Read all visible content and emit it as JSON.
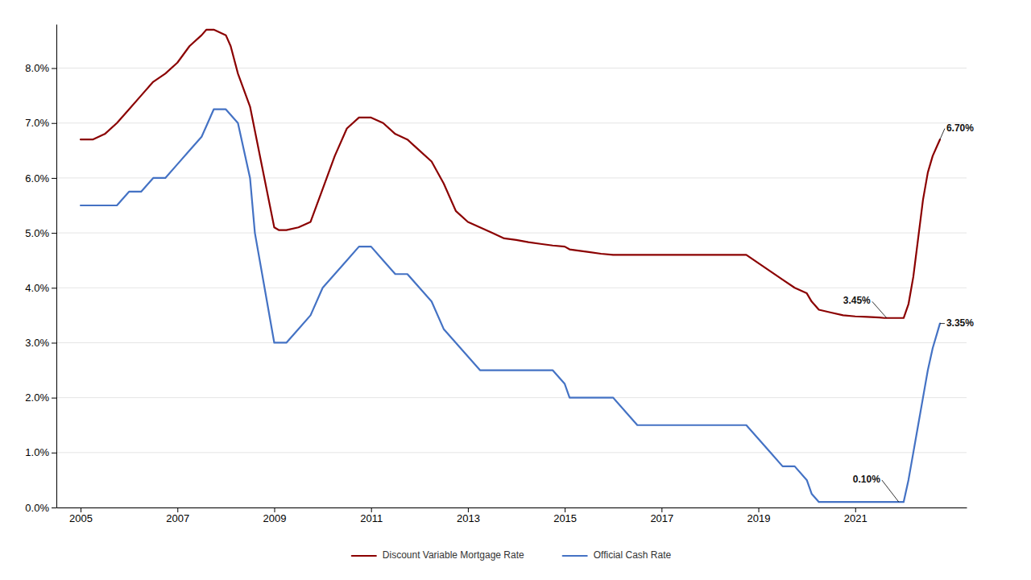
{
  "chart_data": {
    "type": "line",
    "series": [
      {
        "name": "Discount Variable Mortgage Rate",
        "color": "#8B0000",
        "x": [
          2005.0,
          2005.25,
          2005.5,
          2005.75,
          2006.0,
          2006.25,
          2006.5,
          2006.75,
          2007.0,
          2007.25,
          2007.5,
          2007.6,
          2007.75,
          2008.0,
          2008.1,
          2008.25,
          2008.5,
          2008.75,
          2009.0,
          2009.1,
          2009.25,
          2009.5,
          2009.75,
          2010.0,
          2010.25,
          2010.5,
          2010.75,
          2011.0,
          2011.25,
          2011.5,
          2011.75,
          2012.0,
          2012.25,
          2012.5,
          2012.75,
          2013.0,
          2013.25,
          2013.5,
          2013.75,
          2014.0,
          2014.25,
          2014.5,
          2014.75,
          2015.0,
          2015.1,
          2015.25,
          2015.5,
          2015.75,
          2016.0,
          2016.25,
          2016.5,
          2016.75,
          2017.0,
          2017.25,
          2017.5,
          2017.75,
          2018.0,
          2018.25,
          2018.5,
          2018.75,
          2019.0,
          2019.25,
          2019.5,
          2019.75,
          2020.0,
          2020.1,
          2020.25,
          2020.5,
          2020.75,
          2021.0,
          2021.25,
          2021.5,
          2021.6,
          2021.75,
          2022.0,
          2022.1,
          2022.2,
          2022.3,
          2022.4,
          2022.5,
          2022.6,
          2022.7,
          2022.75
        ],
        "values": [
          0.067,
          0.067,
          0.068,
          0.07,
          0.0725,
          0.075,
          0.0775,
          0.079,
          0.081,
          0.084,
          0.086,
          0.087,
          0.087,
          0.086,
          0.084,
          0.079,
          0.073,
          0.062,
          0.051,
          0.0505,
          0.0505,
          0.051,
          0.052,
          0.058,
          0.064,
          0.069,
          0.071,
          0.071,
          0.07,
          0.068,
          0.067,
          0.065,
          0.063,
          0.059,
          0.054,
          0.052,
          0.051,
          0.05,
          0.049,
          0.0487,
          0.0483,
          0.048,
          0.0477,
          0.0475,
          0.047,
          0.0468,
          0.0465,
          0.0462,
          0.046,
          0.046,
          0.046,
          0.046,
          0.046,
          0.046,
          0.046,
          0.046,
          0.046,
          0.046,
          0.046,
          0.046,
          0.0445,
          0.043,
          0.0415,
          0.04,
          0.039,
          0.0375,
          0.036,
          0.0355,
          0.035,
          0.0348,
          0.0347,
          0.0346,
          0.0345,
          0.0345,
          0.0345,
          0.037,
          0.042,
          0.049,
          0.056,
          0.061,
          0.064,
          0.066,
          0.067
        ]
      },
      {
        "name": "Official Cash Rate",
        "color": "#4472C4",
        "x": [
          2005.0,
          2005.25,
          2005.5,
          2005.75,
          2006.0,
          2006.25,
          2006.5,
          2006.75,
          2007.0,
          2007.25,
          2007.5,
          2007.75,
          2008.0,
          2008.25,
          2008.5,
          2008.6,
          2008.75,
          2009.0,
          2009.1,
          2009.25,
          2009.5,
          2009.75,
          2010.0,
          2010.25,
          2010.5,
          2010.75,
          2011.0,
          2011.25,
          2011.5,
          2011.75,
          2012.0,
          2012.25,
          2012.5,
          2012.75,
          2013.0,
          2013.25,
          2013.5,
          2013.75,
          2014.0,
          2014.25,
          2014.5,
          2014.75,
          2015.0,
          2015.1,
          2015.25,
          2015.5,
          2015.75,
          2016.0,
          2016.25,
          2016.5,
          2016.75,
          2017.0,
          2017.25,
          2017.5,
          2017.75,
          2018.0,
          2018.25,
          2018.5,
          2018.75,
          2019.0,
          2019.25,
          2019.5,
          2019.75,
          2020.0,
          2020.1,
          2020.25,
          2020.5,
          2020.75,
          2021.0,
          2021.25,
          2021.5,
          2021.75,
          2022.0,
          2022.1,
          2022.2,
          2022.3,
          2022.4,
          2022.5,
          2022.6,
          2022.7,
          2022.75
        ],
        "values": [
          0.055,
          0.055,
          0.055,
          0.055,
          0.0575,
          0.0575,
          0.06,
          0.06,
          0.0625,
          0.065,
          0.0675,
          0.0725,
          0.0725,
          0.07,
          0.06,
          0.05,
          0.0425,
          0.03,
          0.03,
          0.03,
          0.0325,
          0.035,
          0.04,
          0.0425,
          0.045,
          0.0475,
          0.0475,
          0.045,
          0.0425,
          0.0425,
          0.04,
          0.0375,
          0.0325,
          0.03,
          0.0275,
          0.025,
          0.025,
          0.025,
          0.025,
          0.025,
          0.025,
          0.025,
          0.0225,
          0.02,
          0.02,
          0.02,
          0.02,
          0.02,
          0.0175,
          0.015,
          0.015,
          0.015,
          0.015,
          0.015,
          0.015,
          0.015,
          0.015,
          0.015,
          0.015,
          0.0125,
          0.01,
          0.0075,
          0.0075,
          0.005,
          0.0025,
          0.001,
          0.001,
          0.001,
          0.001,
          0.001,
          0.001,
          0.001,
          0.001,
          0.005,
          0.01,
          0.015,
          0.02,
          0.025,
          0.029,
          0.032,
          0.0335
        ]
      }
    ],
    "xlim": [
      2004.5,
      2023.3
    ],
    "xticks": [
      2005,
      2007,
      2009,
      2011,
      2013,
      2015,
      2017,
      2019,
      2021
    ],
    "ylim": [
      0.0,
      0.088
    ],
    "yticks": [
      {
        "value": 0.0,
        "label": "0.0%"
      },
      {
        "value": 0.01,
        "label": "1.0%"
      },
      {
        "value": 0.02,
        "label": "2.0%"
      },
      {
        "value": 0.03,
        "label": "3.0%"
      },
      {
        "value": 0.04,
        "label": "4.0%"
      },
      {
        "value": 0.05,
        "label": "5.0%"
      },
      {
        "value": 0.06,
        "label": "6.0%"
      },
      {
        "value": 0.07,
        "label": "7.0%"
      },
      {
        "value": 0.08,
        "label": "8.0%"
      }
    ],
    "grid": true,
    "legend": "bottom",
    "annotations": [
      {
        "text": "6.70%",
        "xy": [
          2022.75,
          0.067
        ],
        "xytext": [
          2022.85,
          0.069
        ]
      },
      {
        "text": "3.45%",
        "xy": [
          2021.65,
          0.0345
        ],
        "xytext": [
          2021.35,
          0.0375
        ]
      },
      {
        "text": "3.35%",
        "xy": [
          2022.75,
          0.0335
        ],
        "xytext": [
          2022.85,
          0.0335
        ]
      },
      {
        "text": "0.10%",
        "xy": [
          2021.9,
          0.001
        ],
        "xytext": [
          2021.55,
          0.005
        ]
      }
    ]
  }
}
